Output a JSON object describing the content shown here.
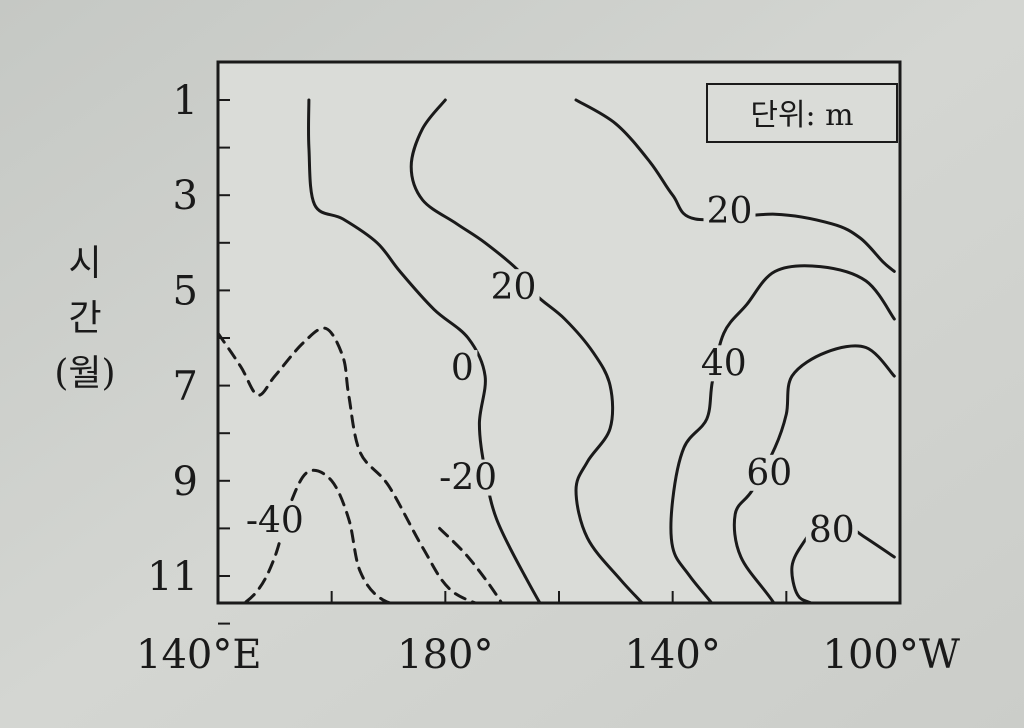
{
  "chart_data": {
    "type": "contour",
    "title": "",
    "unit_note": "단위: m",
    "xlabel": "",
    "ylabel_lines": [
      "시",
      "간",
      "(월)"
    ],
    "x_ticks": [
      "140°E",
      "180°",
      "140°",
      "100°W"
    ],
    "y_ticks": [
      "1",
      "3",
      "5",
      "7",
      "9",
      "11"
    ],
    "x_range_lon": [
      140,
      260
    ],
    "y_range_month": [
      1,
      12
    ],
    "line_color": "#1a1a1a",
    "contours": [
      {
        "level": -40,
        "label": "-40",
        "style": "dashed",
        "points": [
          [
            140,
            5.9
          ],
          [
            144,
            6.6
          ],
          [
            147,
            7.2
          ],
          [
            150,
            6.8
          ],
          [
            155,
            6.1
          ],
          [
            159,
            5.8
          ],
          [
            162,
            6.4
          ],
          [
            163,
            7.2
          ],
          [
            165,
            8.4
          ],
          [
            170,
            9.1
          ],
          [
            176,
            10.4
          ],
          [
            181,
            11.3
          ],
          [
            189,
            11.8
          ],
          [
            193,
            12.6
          ]
        ]
      },
      {
        "level": -40,
        "label": "",
        "style": "dashed",
        "points": [
          [
            139,
            11.9
          ],
          [
            143,
            11.7
          ],
          [
            147,
            11.3
          ],
          [
            150,
            10.6
          ],
          [
            153,
            9.4
          ],
          [
            156,
            8.8
          ],
          [
            160,
            9.0
          ],
          [
            163,
            9.8
          ],
          [
            165,
            10.9
          ],
          [
            169,
            11.5
          ],
          [
            176,
            11.7
          ],
          [
            182,
            11.8
          ],
          [
            186,
            12.3
          ],
          [
            189,
            12.8
          ]
        ]
      },
      {
        "level": -20,
        "label": "-20",
        "style": "dashed",
        "points": [
          [
            179,
            10.0
          ],
          [
            184,
            10.6
          ],
          [
            189,
            11.4
          ],
          [
            193,
            12.2
          ],
          [
            196,
            12.8
          ]
        ]
      },
      {
        "level": 0,
        "label": "0",
        "style": "solid",
        "points": [
          [
            156,
            1.0
          ],
          [
            156,
            2.0
          ],
          [
            157,
            3.2
          ],
          [
            162,
            3.5
          ],
          [
            168,
            4.0
          ],
          [
            172,
            4.6
          ],
          [
            178,
            5.4
          ],
          [
            184,
            6.0
          ],
          [
            187,
            6.8
          ],
          [
            186,
            7.8
          ],
          [
            187,
            8.8
          ],
          [
            189,
            9.8
          ],
          [
            194,
            11.0
          ],
          [
            199,
            12.0
          ],
          [
            205,
            12.8
          ]
        ]
      },
      {
        "level": 20,
        "label": "20",
        "style": "solid",
        "points": [
          [
            180,
            1.0
          ],
          [
            176,
            1.6
          ],
          [
            174,
            2.4
          ],
          [
            176,
            3.1
          ],
          [
            182,
            3.6
          ],
          [
            187,
            4.0
          ],
          [
            193,
            4.6
          ],
          [
            196,
            5.1
          ],
          [
            201,
            5.6
          ],
          [
            206,
            6.3
          ],
          [
            209,
            7.0
          ],
          [
            209,
            7.9
          ],
          [
            205,
            8.6
          ],
          [
            203,
            9.2
          ],
          [
            205,
            10.2
          ],
          [
            211,
            11.1
          ],
          [
            218,
            12.0
          ],
          [
            223,
            12.8
          ]
        ]
      },
      {
        "level": 20,
        "label": "20",
        "style": "solid",
        "points": [
          [
            203,
            1.0
          ],
          [
            210,
            1.5
          ],
          [
            216,
            2.3
          ],
          [
            220,
            3.0
          ],
          [
            224,
            3.5
          ],
          [
            238,
            3.4
          ],
          [
            248,
            3.6
          ],
          [
            253,
            3.9
          ],
          [
            257,
            4.4
          ],
          [
            259,
            4.6
          ]
        ]
      },
      {
        "level": 40,
        "label": "40",
        "style": "solid",
        "points": [
          [
            259,
            5.6
          ],
          [
            254,
            4.8
          ],
          [
            246,
            4.5
          ],
          [
            238,
            4.6
          ],
          [
            233,
            5.3
          ],
          [
            229,
            5.9
          ],
          [
            227,
            6.9
          ],
          [
            226,
            7.7
          ],
          [
            222,
            8.3
          ],
          [
            220,
            9.4
          ],
          [
            220,
            10.4
          ],
          [
            223,
            11.0
          ],
          [
            229,
            11.9
          ],
          [
            233,
            12.8
          ]
        ]
      },
      {
        "level": 60,
        "label": "60",
        "style": "solid",
        "points": [
          [
            259,
            6.8
          ],
          [
            254,
            6.2
          ],
          [
            247,
            6.3
          ],
          [
            241,
            6.8
          ],
          [
            240,
            7.6
          ],
          [
            238,
            8.3
          ],
          [
            234,
            9.2
          ],
          [
            231,
            9.7
          ],
          [
            232,
            10.6
          ],
          [
            238,
            11.6
          ],
          [
            244,
            12.8
          ]
        ]
      },
      {
        "level": 80,
        "label": "80",
        "style": "solid",
        "points": [
          [
            259,
            10.6
          ],
          [
            254,
            10.2
          ],
          [
            250,
            9.9
          ],
          [
            246,
            9.9
          ],
          [
            243,
            10.3
          ],
          [
            241,
            10.8
          ],
          [
            242,
            11.4
          ],
          [
            245,
            11.6
          ],
          [
            252,
            12.0
          ],
          [
            259,
            12.2
          ]
        ]
      }
    ],
    "labels": [
      {
        "text": "-40",
        "lon": 150,
        "month": 10.0
      },
      {
        "text": "-20",
        "lon": 184,
        "month": 9.1
      },
      {
        "text": "0",
        "lon": 183,
        "month": 6.8
      },
      {
        "text": "20",
        "lon": 192,
        "month": 5.1
      },
      {
        "text": "20",
        "lon": 230,
        "month": 3.5
      },
      {
        "text": "40",
        "lon": 229,
        "month": 6.7
      },
      {
        "text": "60",
        "lon": 237,
        "month": 9.0
      },
      {
        "text": "80",
        "lon": 248,
        "month": 10.2
      }
    ]
  }
}
